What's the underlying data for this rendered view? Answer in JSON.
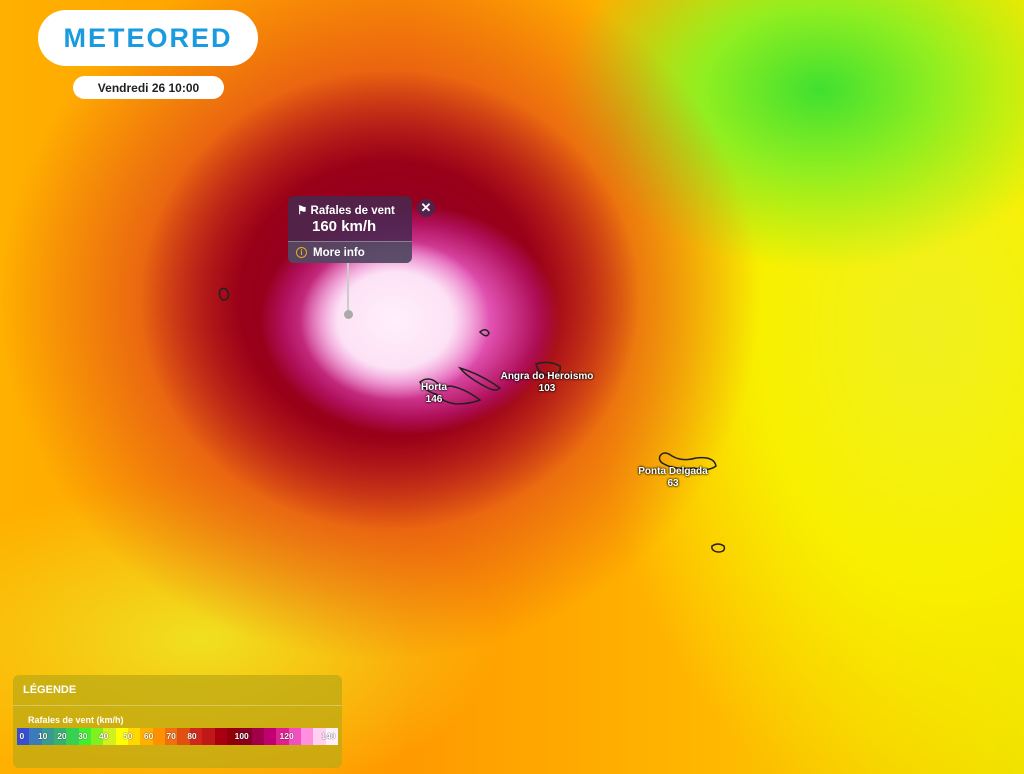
{
  "brand": {
    "name": "METEORED",
    "color": "#1a9be0"
  },
  "datetime": "Vendredi 26 10:00",
  "popup": {
    "title": "Rafales de vent",
    "value": "160 km/h",
    "more_info": "More info",
    "icon": "flag-icon",
    "close": "✕"
  },
  "cities": [
    {
      "name": "Horta",
      "value": "146"
    },
    {
      "name": "Angra do Heroismo",
      "value": "103"
    },
    {
      "name": "Ponta Delgada",
      "value": "63"
    }
  ],
  "legend": {
    "title": "LÉGENDE",
    "variable": "Rafales de vent (km/h)",
    "ticks": [
      "0",
      "10",
      "20",
      "30",
      "40",
      "50",
      "60",
      "70",
      "80",
      "100",
      "120",
      "140"
    ],
    "colors": [
      "#3a4fd0",
      "#3a7bb8",
      "#3a9a90",
      "#38b070",
      "#38d050",
      "#40f030",
      "#80f020",
      "#d0f020",
      "#ffff00",
      "#ffd800",
      "#ffb000",
      "#ff9000",
      "#f07010",
      "#e05010",
      "#d02818",
      "#c01818",
      "#a80010",
      "#900008",
      "#880020",
      "#a0004a",
      "#c00070",
      "#e02090",
      "#f050c0",
      "#ff90e0",
      "#ffd0f0",
      "#fff0fa"
    ]
  }
}
